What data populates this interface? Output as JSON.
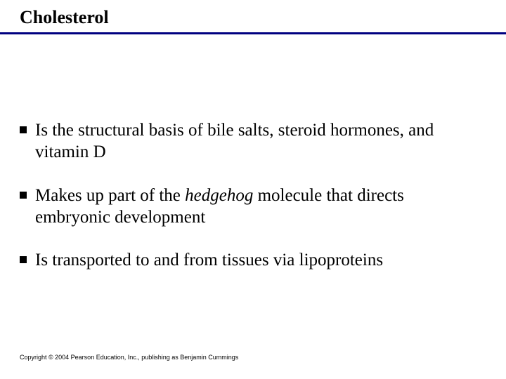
{
  "slide": {
    "title": "Cholesterol",
    "title_fontsize": 26,
    "title_weight": "bold",
    "title_color": "#000000",
    "rule_color": "#000080",
    "rule_height": 3,
    "background_color": "#ffffff",
    "bullets": [
      {
        "pre": "Is the structural basis of bile salts, steroid hormones, and vitamin D",
        "italic": "",
        "post": ""
      },
      {
        "pre": "Makes up part of the ",
        "italic": "hedgehog",
        "post": " molecule that directs embryonic development"
      },
      {
        "pre": "Is transported to and from tissues via lipoproteins",
        "italic": "",
        "post": ""
      }
    ],
    "bullet_marker_color": "#000000",
    "bullet_marker_size": 10,
    "body_fontsize": 25,
    "body_color": "#000000",
    "copyright": "Copyright © 2004 Pearson Education, Inc., publishing as Benjamin Cummings",
    "copyright_fontsize": 9,
    "copyright_color": "#000000"
  }
}
